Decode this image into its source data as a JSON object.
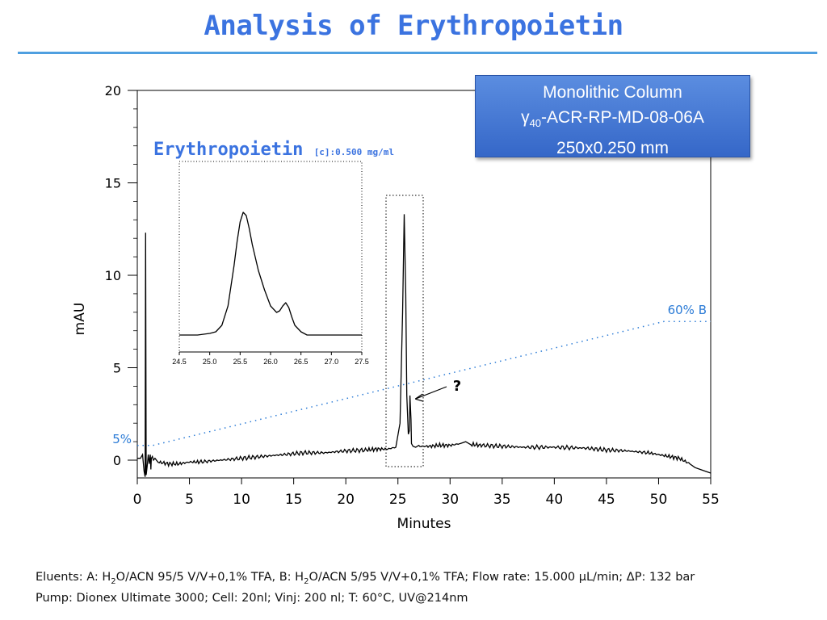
{
  "title": "Analysis of Erythropoietin",
  "column_box": {
    "line1": "Monolithic Column",
    "line2_prefix": "γ",
    "line2_sub": "40",
    "line2_suffix": "-ACR-RP-MD-08-06A",
    "line3": "250x0.250 mm"
  },
  "footer": {
    "line1_parts": {
      "a": "Eluents: A: H",
      "a_sub": "2",
      "b": "O/ACN 95/5 V/V+0,1% TFA,  B: H",
      "b_sub": "2",
      "c": "O/ACN 5/95 V/V+0,1% TFA; Flow rate: 15.000 μL/min; ΔP: 132 bar"
    },
    "line2": "Pump: Dionex Ultimate 3000; Cell: 20nl; Vinj: 200 nl; T: 60°C, UV@214nm"
  },
  "colors": {
    "title": "#3b73e0",
    "gradient_line": "#2b7bd6",
    "trace": "#000000",
    "box_fill": "#4a7fd8"
  },
  "chart_data": [
    {
      "type": "line",
      "xlabel": "Minutes",
      "ylabel": "mAU",
      "xlim": [
        0,
        55
      ],
      "ylim": [
        -1.5,
        20
      ],
      "x_ticks": [
        "0",
        "5",
        "10",
        "15",
        "20",
        "25",
        "30",
        "35",
        "40",
        "45",
        "50",
        "55"
      ],
      "y_ticks": [
        "0",
        "5",
        "10",
        "15",
        "20"
      ],
      "series": [
        {
          "x": [
            0,
            0.3,
            0.5,
            0.65,
            0.75,
            0.8,
            0.85,
            0.95,
            1.05,
            1.15,
            1.25,
            1.3,
            1.35,
            1.45,
            1.55,
            1.7,
            2,
            3,
            4,
            5,
            6,
            8,
            10,
            12,
            14,
            16,
            18,
            20,
            22,
            23,
            24,
            24.8,
            25.2,
            25.45,
            25.6,
            25.75,
            25.85,
            26.0,
            26.1,
            26.15,
            26.25,
            26.3,
            26.45,
            26.7,
            27,
            28,
            29,
            30,
            31,
            31.5,
            32,
            33,
            35,
            37,
            40,
            43,
            45,
            47,
            49,
            50,
            51,
            52,
            53,
            53.5,
            54,
            54.5,
            55
          ],
          "y": [
            0.1,
            0.1,
            0.3,
            -0.6,
            -0.9,
            12.3,
            -0.8,
            -0.3,
            0.3,
            -0.2,
            0.3,
            -0.5,
            0.1,
            0.2,
            0,
            0.1,
            -0.1,
            -0.2,
            -0.2,
            -0.1,
            -0.1,
            0,
            0.1,
            0.2,
            0.3,
            0.4,
            0.4,
            0.5,
            0.55,
            0.6,
            0.6,
            0.7,
            2,
            8,
            13.3,
            9,
            3.5,
            1.4,
            1.6,
            3.5,
            2.2,
            0.9,
            0.75,
            0.7,
            0.75,
            0.75,
            0.8,
            0.8,
            0.9,
            1.0,
            0.85,
            0.8,
            0.75,
            0.7,
            0.7,
            0.65,
            0.55,
            0.5,
            0.4,
            0.3,
            0.2,
            0.1,
            -0.2,
            -0.4,
            -0.5,
            -0.6,
            -0.7
          ]
        },
        {
          "name": "gradient",
          "x": [
            0,
            1.5,
            50.5,
            55
          ],
          "y": [
            0.8,
            0.8,
            7.5,
            7.5
          ]
        }
      ],
      "annotations": {
        "gradient_start": "5%",
        "gradient_end": "60% B",
        "question": "?",
        "question_target": [
          26.2,
          3.4
        ]
      }
    },
    {
      "type": "line",
      "title": "Erythropoietin",
      "subtitle": "[c]:0.500 mg/ml",
      "xlim": [
        24.5,
        27.5
      ],
      "ylim": [
        0,
        1
      ],
      "x_ticks": [
        "24.5",
        "25.0",
        "25.5",
        "26.0",
        "26.5",
        "27.0",
        "27.5"
      ],
      "series": [
        {
          "x": [
            24.5,
            24.8,
            25.0,
            25.1,
            25.2,
            25.3,
            25.4,
            25.45,
            25.5,
            25.55,
            25.6,
            25.65,
            25.7,
            25.8,
            25.9,
            26.0,
            26.1,
            26.15,
            26.2,
            26.25,
            26.3,
            26.35,
            26.4,
            26.5,
            26.6,
            26.8,
            27.0,
            27.2,
            27.5
          ],
          "y": [
            0.02,
            0.02,
            0.03,
            0.04,
            0.08,
            0.2,
            0.45,
            0.6,
            0.72,
            0.78,
            0.76,
            0.68,
            0.58,
            0.42,
            0.3,
            0.2,
            0.16,
            0.17,
            0.2,
            0.22,
            0.19,
            0.13,
            0.08,
            0.04,
            0.02,
            0.02,
            0.02,
            0.02,
            0.02
          ]
        }
      ]
    }
  ]
}
